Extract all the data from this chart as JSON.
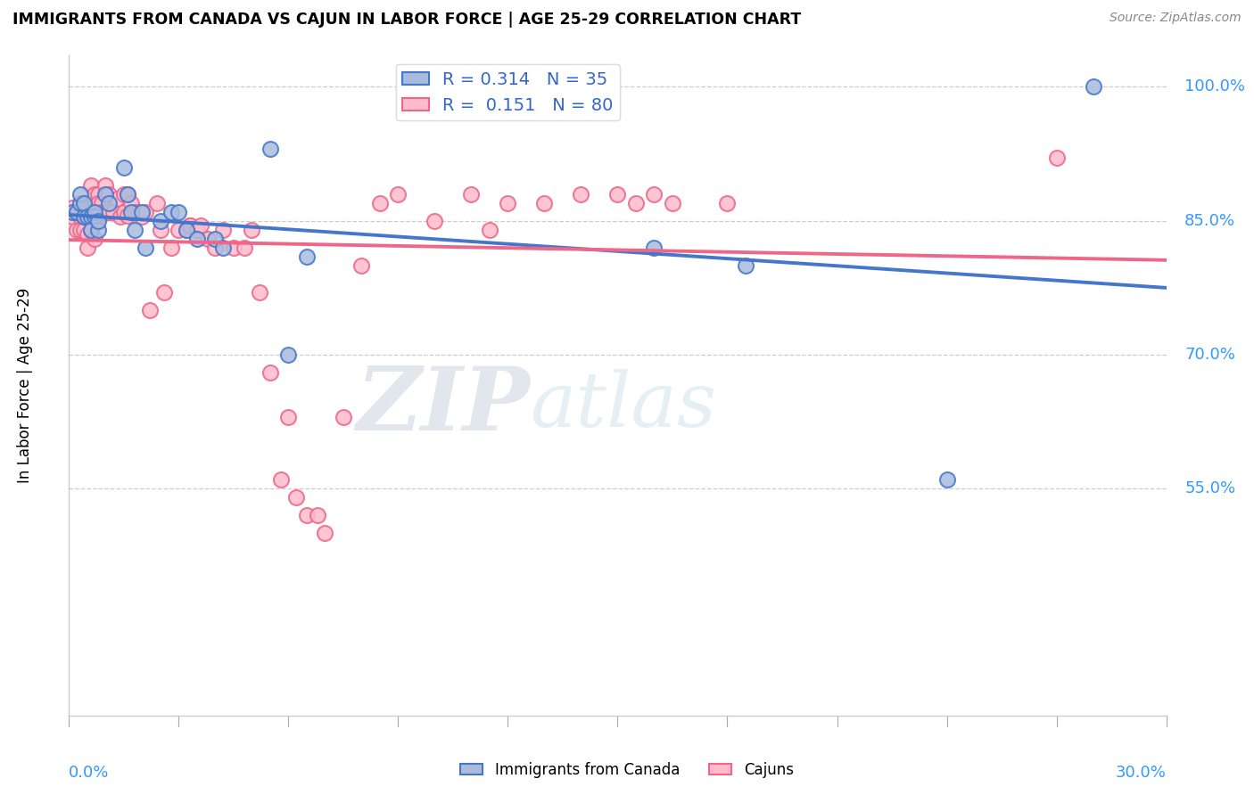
{
  "title": "IMMIGRANTS FROM CANADA VS CAJUN IN LABOR FORCE | AGE 25-29 CORRELATION CHART",
  "source": "Source: ZipAtlas.com",
  "ylabel": "In Labor Force | Age 25-29",
  "blue_R": 0.314,
  "blue_N": 35,
  "pink_R": 0.151,
  "pink_N": 80,
  "blue_fill": "#AABBDD",
  "pink_fill": "#FFBBCC",
  "line_blue": "#4477CC",
  "line_pink": "#EE6688",
  "legend_blue": "Immigrants from Canada",
  "legend_pink": "Cajuns",
  "x_min": 0.0,
  "x_max": 0.3,
  "y_min": 0.295,
  "y_max": 1.035,
  "watermark_zip": "ZIP",
  "watermark_atlas": "atlas",
  "right_yticks": [
    1.0,
    0.85,
    0.7,
    0.55
  ],
  "right_ytick_labels": [
    "100.0%",
    "85.0%",
    "70.0%",
    "55.0%"
  ],
  "grid_lines": [
    0.85,
    0.7,
    0.55,
    1.0
  ],
  "blue_x": [
    0.001,
    0.002,
    0.003,
    0.003,
    0.004,
    0.004,
    0.005,
    0.006,
    0.006,
    0.007,
    0.007,
    0.008,
    0.008,
    0.01,
    0.011,
    0.015,
    0.016,
    0.017,
    0.018,
    0.02,
    0.021,
    0.025,
    0.028,
    0.03,
    0.032,
    0.035,
    0.04,
    0.042,
    0.055,
    0.06,
    0.065,
    0.16,
    0.185,
    0.24,
    0.28
  ],
  "blue_y": [
    0.86,
    0.86,
    0.87,
    0.88,
    0.855,
    0.87,
    0.855,
    0.855,
    0.84,
    0.855,
    0.86,
    0.84,
    0.85,
    0.88,
    0.87,
    0.91,
    0.88,
    0.86,
    0.84,
    0.86,
    0.82,
    0.85,
    0.86,
    0.86,
    0.84,
    0.83,
    0.83,
    0.82,
    0.93,
    0.7,
    0.81,
    0.82,
    0.8,
    0.56,
    1.0
  ],
  "pink_x": [
    0.001,
    0.001,
    0.002,
    0.002,
    0.003,
    0.003,
    0.004,
    0.004,
    0.004,
    0.005,
    0.005,
    0.005,
    0.006,
    0.006,
    0.006,
    0.007,
    0.007,
    0.007,
    0.008,
    0.008,
    0.008,
    0.009,
    0.009,
    0.01,
    0.01,
    0.011,
    0.011,
    0.012,
    0.013,
    0.014,
    0.015,
    0.015,
    0.016,
    0.016,
    0.017,
    0.018,
    0.019,
    0.02,
    0.021,
    0.022,
    0.024,
    0.025,
    0.026,
    0.028,
    0.03,
    0.032,
    0.033,
    0.033,
    0.035,
    0.036,
    0.038,
    0.04,
    0.042,
    0.045,
    0.048,
    0.05,
    0.052,
    0.055,
    0.058,
    0.06,
    0.062,
    0.065,
    0.068,
    0.07,
    0.075,
    0.08,
    0.085,
    0.09,
    0.1,
    0.11,
    0.115,
    0.12,
    0.13,
    0.14,
    0.15,
    0.155,
    0.16,
    0.165,
    0.18,
    0.27
  ],
  "pink_y": [
    0.855,
    0.865,
    0.86,
    0.84,
    0.855,
    0.84,
    0.86,
    0.855,
    0.84,
    0.86,
    0.835,
    0.82,
    0.89,
    0.87,
    0.84,
    0.88,
    0.86,
    0.83,
    0.88,
    0.87,
    0.855,
    0.87,
    0.86,
    0.89,
    0.86,
    0.88,
    0.86,
    0.86,
    0.875,
    0.855,
    0.88,
    0.86,
    0.88,
    0.856,
    0.87,
    0.86,
    0.86,
    0.855,
    0.86,
    0.75,
    0.87,
    0.84,
    0.77,
    0.82,
    0.84,
    0.84,
    0.845,
    0.845,
    0.84,
    0.845,
    0.83,
    0.82,
    0.84,
    0.82,
    0.82,
    0.84,
    0.77,
    0.68,
    0.56,
    0.63,
    0.54,
    0.52,
    0.52,
    0.5,
    0.63,
    0.8,
    0.87,
    0.88,
    0.85,
    0.88,
    0.84,
    0.87,
    0.87,
    0.88,
    0.88,
    0.87,
    0.88,
    0.87,
    0.87,
    0.92
  ]
}
